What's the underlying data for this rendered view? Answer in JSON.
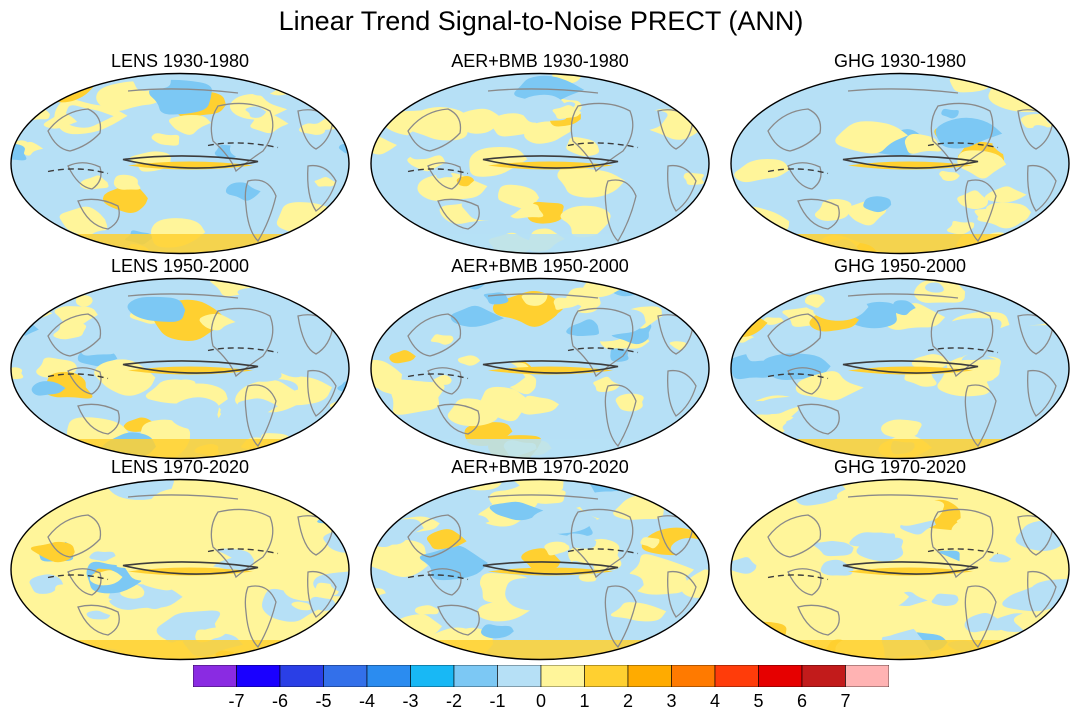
{
  "title": "Linear Trend Signal-to-Noise PRECT (ANN)",
  "panels": [
    {
      "label": "LENS 1930-1980"
    },
    {
      "label": "AER+BMB 1930-1980"
    },
    {
      "label": "GHG 1930-1980"
    },
    {
      "label": "LENS 1950-2000"
    },
    {
      "label": "AER+BMB 1950-2000"
    },
    {
      "label": "GHG 1950-2000"
    },
    {
      "label": "LENS 1970-2020"
    },
    {
      "label": "AER+BMB 1970-2020"
    },
    {
      "label": "GHG 1970-2020"
    }
  ],
  "colorbar": {
    "colors": [
      "#8a2be2",
      "#1a00ff",
      "#2a3fe6",
      "#3370ea",
      "#2b8cf0",
      "#18b8f5",
      "#7cc8f4",
      "#b6e0f6",
      "#fff59a",
      "#ffd030",
      "#ffab00",
      "#ff7a00",
      "#ff3c0a",
      "#e60000",
      "#c21b1b",
      "#ffb3b3"
    ],
    "tick_labels": [
      "-7",
      "-6",
      "-5",
      "-4",
      "-3",
      "-2",
      "-1",
      "0",
      "1",
      "2",
      "3",
      "4",
      "5",
      "6",
      "7"
    ]
  },
  "palette": {
    "ocean_neg": "#b6e0f6",
    "ocean_pos": "#fff59a",
    "strong_neg": "#7cc8f4",
    "strong_pos": "#ffd030",
    "coast": "#8a8a8a",
    "contour": "#3c3c3c"
  }
}
